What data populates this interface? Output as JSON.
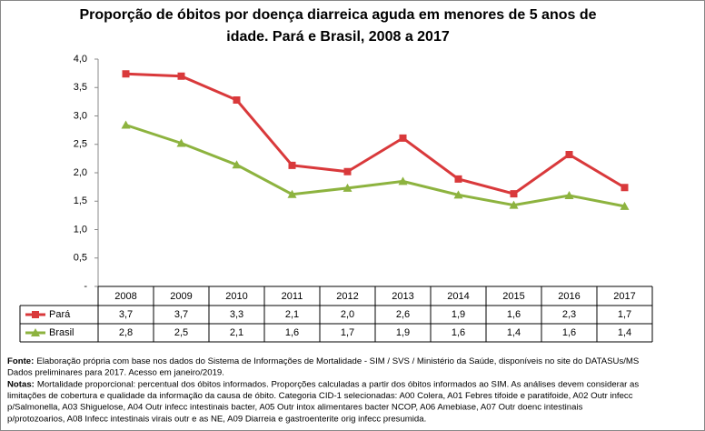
{
  "chart_data": {
    "type": "line",
    "title": [
      "Proporção de óbitos por doença diarreica aguda em menores de 5 anos de",
      "idade. Pará e  Brasil, 2008 a 2017"
    ],
    "categories": [
      "2008",
      "2009",
      "2010",
      "2011",
      "2012",
      "2013",
      "2014",
      "2015",
      "2016",
      "2017"
    ],
    "series": [
      {
        "name": "Pará",
        "color": "#d9393b",
        "marker": "square",
        "values": [
          3.74,
          3.7,
          3.28,
          2.13,
          2.02,
          2.61,
          1.89,
          1.63,
          2.32,
          1.74
        ],
        "value_labels": [
          "3,7",
          "3,7",
          "3,3",
          "2,1",
          "2,0",
          "2,6",
          "1,9",
          "1,6",
          "2,3",
          "1,7"
        ]
      },
      {
        "name": "Brasil",
        "color": "#8db33f",
        "marker": "triangle",
        "values": [
          2.84,
          2.52,
          2.14,
          1.62,
          1.73,
          1.85,
          1.61,
          1.43,
          1.6,
          1.41
        ],
        "value_labels": [
          "2,8",
          "2,5",
          "2,1",
          "1,6",
          "1,7",
          "1,9",
          "1,6",
          "1,4",
          "1,6",
          "1,4"
        ]
      }
    ],
    "ylim": [
      0,
      4
    ],
    "yticks": [
      {
        "value": 0,
        "label": "-"
      },
      {
        "value": 0.5,
        "label": "0,5"
      },
      {
        "value": 1,
        "label": "1,0"
      },
      {
        "value": 1.5,
        "label": "1,5"
      },
      {
        "value": 2,
        "label": "2,0"
      },
      {
        "value": 2.5,
        "label": "2,5"
      },
      {
        "value": 3,
        "label": "3,0"
      },
      {
        "value": 3.5,
        "label": "3,5"
      },
      {
        "value": 4,
        "label": "4,0"
      }
    ],
    "grid": false,
    "source": {
      "label": "Fonte:",
      "lines": [
        "Elaboração própria com base nos dados do Sistema de Informações de Mortalidade - SIM / SVS / Ministério da Saúde, disponíveis no site do DATASUs/MS",
        "Dados preliminares para 2017. Acesso em janeiro/2019."
      ]
    },
    "notes": {
      "label": "Notas:",
      "lines": [
        "Mortalidade proporcional: percentual dos óbitos informados. Proporções calculadas a partir dos óbitos informados ao SIM. As análises devem considerar as",
        "limitações de cobertura e qualidade da informação da causa de óbito. Categoria CID-1 selecionadas: A00 Colera, A01 Febres tifoide e paratifoide, A02 Outr infecc",
        "p/Salmonella, A03 Shiguelose, A04 Outr infecc intestinais bacter, A05 Outr intox alimentares bacter NCOP, A06 Amebiase, A07 Outr doenc intestinais",
        "p/protozoarios, A08 Infecc intestinais virais outr e as NE, A09 Diarreia e gastroenterite orig infecc presumida."
      ]
    }
  }
}
